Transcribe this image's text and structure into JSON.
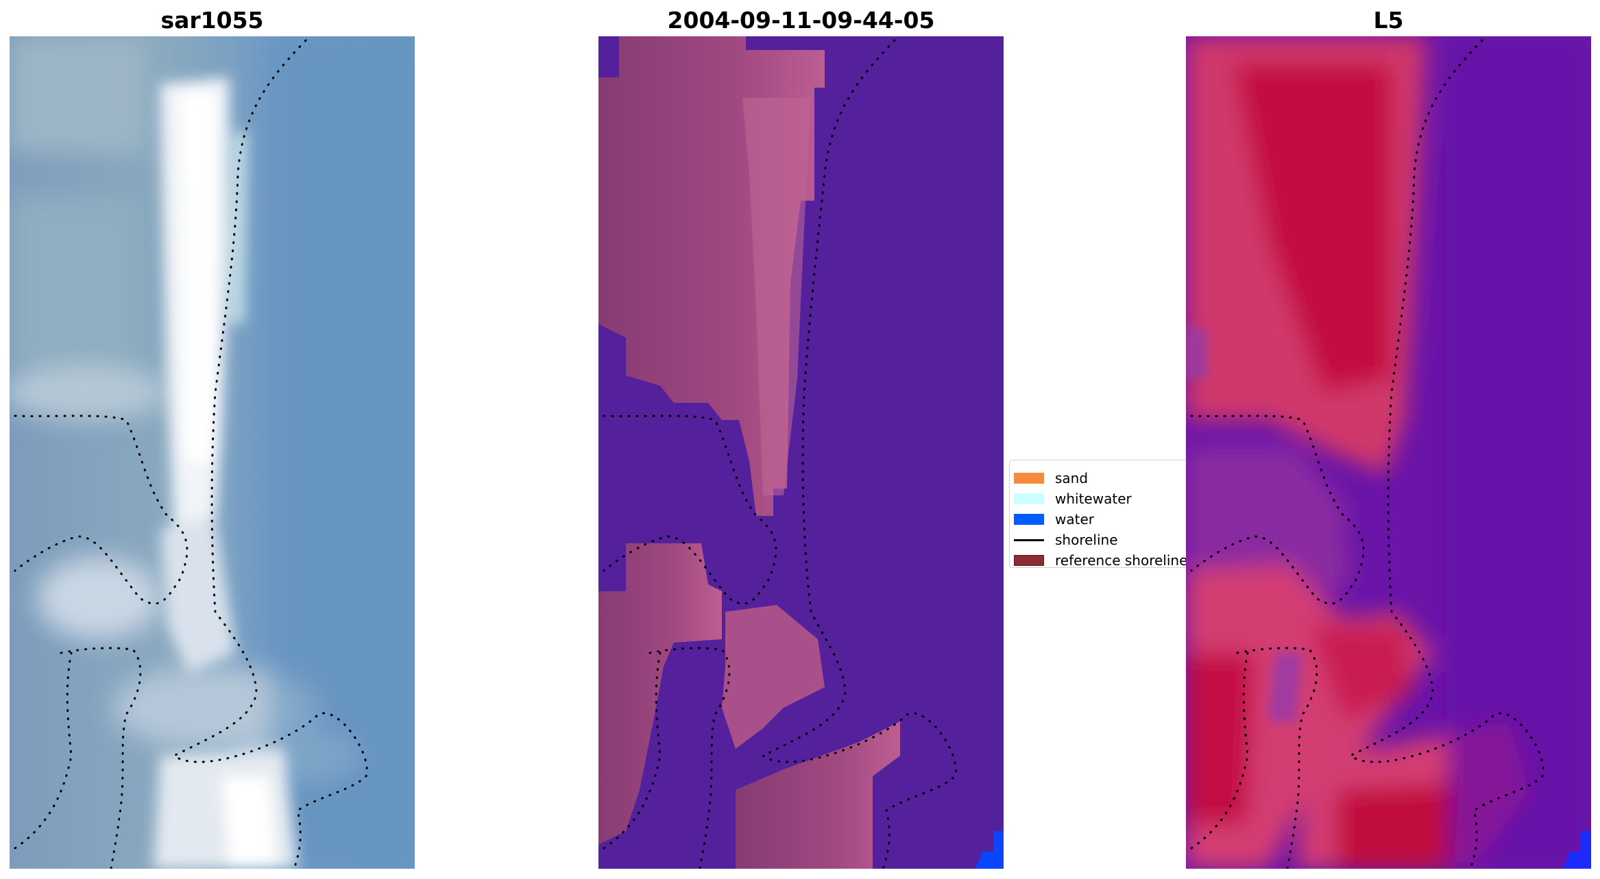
{
  "panels": {
    "rgb": {
      "title": "sar1055"
    },
    "classification": {
      "title": "2004-09-11-09-44-05"
    },
    "index": {
      "title": "L5"
    }
  },
  "legend": {
    "items": [
      {
        "label": "sand",
        "kind": "patch",
        "color": "#f68a3c"
      },
      {
        "label": "whitewater",
        "kind": "patch",
        "color": "#ccffff"
      },
      {
        "label": "water",
        "kind": "patch",
        "color": "#005cff"
      },
      {
        "label": "shoreline",
        "kind": "line",
        "color": "#000000"
      },
      {
        "label": "reference shoreline",
        "kind": "patch",
        "color": "#8b2c35"
      }
    ]
  },
  "colors": {
    "rgb_water": "#6795c0",
    "rgb_foam": "#e9eef4",
    "class_background": "#54209b",
    "class_sand_overlay": "#a1477f",
    "class_water_pixels": "#0b45fb",
    "index_high": "#c40b42",
    "index_low": "#5d0aa6",
    "shoreline_dots": "#000000"
  }
}
